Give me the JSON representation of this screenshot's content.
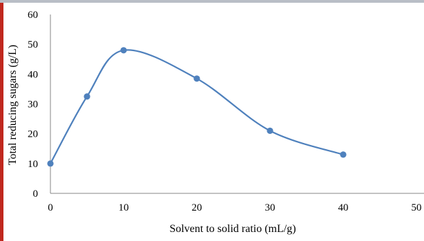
{
  "colors": {
    "series": "#4f81bd",
    "axis": "#868686",
    "accent_bar": "#c0281e",
    "top_line": "#b9bec6"
  },
  "chart_data": {
    "type": "line",
    "smooth": true,
    "title": "",
    "xlabel": "Solvent to solid ratio (mL/g)",
    "ylabel": "Total reducing sugars (g/L)",
    "xlim": [
      0,
      50
    ],
    "ylim": [
      0,
      60
    ],
    "xticks": [
      0,
      10,
      20,
      30,
      40,
      50
    ],
    "yticks": [
      0,
      10,
      20,
      30,
      40,
      50,
      60
    ],
    "grid": false,
    "legend": "none",
    "series": [
      {
        "x": [
          0,
          5,
          10,
          20,
          30,
          40
        ],
        "y": [
          10,
          32.5,
          48,
          38.5,
          21,
          13
        ]
      }
    ]
  }
}
